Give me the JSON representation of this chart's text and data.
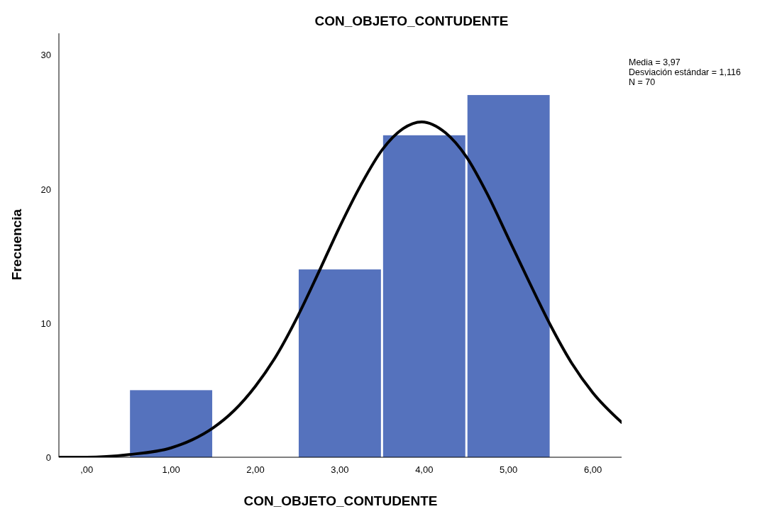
{
  "chart_data": {
    "type": "histogram",
    "title": "CON_OBJETO_CONTUDENTE",
    "xlabel": "CON_OBJETO_CONTUDENTE",
    "ylabel": "Frecuencia",
    "bins": [
      0.5,
      1.5,
      2.5,
      3.5,
      4.5,
      5.5
    ],
    "values": [
      5,
      0,
      14,
      24,
      27
    ],
    "color": "#5572bd",
    "series": [
      {
        "type": "line",
        "color": "#000000",
        "x": [
          -0.33,
          0,
          0.5,
          1,
          1.25,
          1.5,
          1.75,
          2,
          2.25,
          2.5,
          2.75,
          3,
          3.25,
          3.5,
          3.75,
          3.97,
          4.25,
          4.5,
          4.75,
          5,
          5.25,
          5.5,
          5.75,
          6,
          6.34
        ],
        "values": [
          0.0,
          0.0,
          0.2,
          0.7,
          1.3,
          2.2,
          3.5,
          5.3,
          7.6,
          10.5,
          13.8,
          17.2,
          20.3,
          22.9,
          24.5,
          25.0,
          24.2,
          22.4,
          19.6,
          16.3,
          13.0,
          9.8,
          7.0,
          4.8,
          2.6
        ]
      }
    ],
    "xlim": [
      -0.33,
      6.34
    ],
    "xticks": [
      {
        "value": 0,
        "label": ",00"
      },
      {
        "value": 1,
        "label": "1,00"
      },
      {
        "value": 2,
        "label": "2,00"
      },
      {
        "value": 3,
        "label": "3,00"
      },
      {
        "value": 4,
        "label": "4,00"
      },
      {
        "value": 5,
        "label": "5,00"
      },
      {
        "value": 6,
        "label": "6,00"
      }
    ],
    "ylim": [
      0,
      31.6
    ],
    "yticks": [
      0,
      10,
      20,
      30
    ],
    "annotations": [
      "Media = 3,97",
      "Desviación estándar = 1,116",
      "N = 70"
    ]
  }
}
